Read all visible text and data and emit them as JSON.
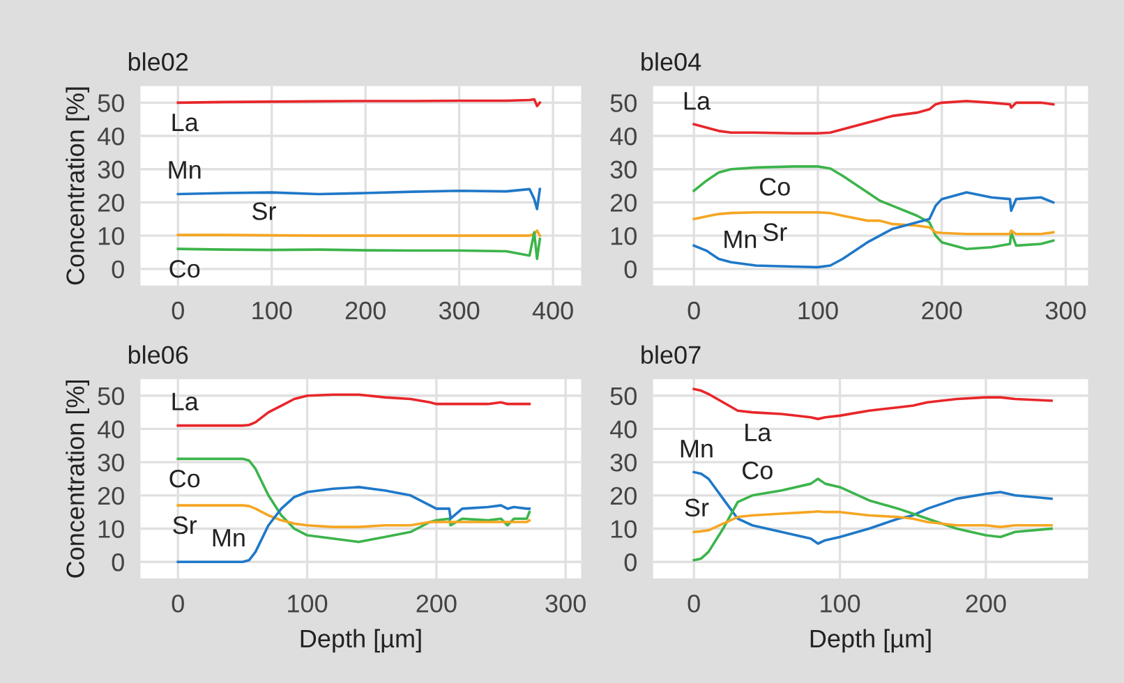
{
  "chart_data": [
    {
      "type": "line",
      "title": "ble02",
      "ylabel": "Concentration [%]",
      "xlim": [
        -40,
        430
      ],
      "xticks": [
        0,
        100,
        200,
        300,
        400
      ],
      "ylim": [
        -5,
        55
      ],
      "yticks": [
        0,
        10,
        20,
        30,
        40,
        50
      ],
      "grid": true,
      "tick_labels": true,
      "x": [
        0,
        50,
        100,
        150,
        200,
        250,
        300,
        350,
        375,
        380,
        383,
        386
      ],
      "series": [
        {
          "name": "La",
          "color": "#e8262a",
          "values": [
            50,
            50.2,
            50.3,
            50.4,
            50.5,
            50.5,
            50.6,
            50.6,
            50.8,
            51,
            49,
            50
          ]
        },
        {
          "name": "Mn",
          "color": "#1f78c8",
          "values": [
            22.5,
            22.8,
            23,
            22.5,
            22.8,
            23.2,
            23.5,
            23.3,
            24,
            21,
            18,
            24
          ]
        },
        {
          "name": "Sr",
          "color": "#f5a623",
          "values": [
            10.2,
            10.2,
            10.1,
            10,
            10,
            10,
            10,
            10,
            10,
            10.5,
            11.5,
            10
          ]
        },
        {
          "name": "Co",
          "color": "#3cb44b",
          "values": [
            6,
            5.8,
            5.7,
            5.8,
            5.6,
            5.5,
            5.5,
            5.3,
            4,
            11,
            3,
            9
          ]
        }
      ],
      "legend": false
    },
    {
      "type": "line",
      "title": "ble04",
      "xlim": [
        -33,
        318
      ],
      "xticks": [
        0,
        100,
        200,
        300
      ],
      "ylim": [
        -5,
        55
      ],
      "yticks": [
        0,
        10,
        20,
        30,
        40,
        50
      ],
      "grid": true,
      "x": [
        0,
        10,
        20,
        30,
        50,
        80,
        100,
        110,
        120,
        140,
        150,
        160,
        180,
        190,
        195,
        200,
        220,
        240,
        255,
        256,
        260,
        280,
        290
      ],
      "series": [
        {
          "name": "La",
          "color": "#e8262a",
          "values": [
            43.5,
            42.5,
            41.5,
            41,
            41,
            40.8,
            40.8,
            41,
            42,
            44,
            45,
            46,
            47,
            48,
            49.5,
            50,
            50.5,
            50,
            49.5,
            48.5,
            50,
            50,
            49.5
          ]
        },
        {
          "name": "Co",
          "color": "#3cb44b",
          "values": [
            23.5,
            26.5,
            29,
            30,
            30.5,
            30.8,
            30.8,
            30.2,
            28,
            23,
            20.5,
            19,
            16,
            14,
            10,
            8,
            6,
            6.5,
            7.5,
            11,
            7,
            7.5,
            8.5
          ]
        },
        {
          "name": "Sr",
          "color": "#f5a623",
          "values": [
            15,
            15.8,
            16.5,
            16.8,
            17,
            17,
            17,
            16.8,
            16,
            14.5,
            14.5,
            13.5,
            13,
            12.5,
            11,
            10.8,
            10.5,
            10.5,
            10.5,
            11.5,
            10.5,
            10.5,
            11
          ]
        },
        {
          "name": "Mn",
          "color": "#1f78c8",
          "values": [
            7,
            5.5,
            3,
            2,
            1,
            0.7,
            0.5,
            1,
            3,
            8,
            10,
            12,
            14,
            15,
            19,
            21,
            23,
            21.5,
            21,
            17.5,
            21,
            21.5,
            20
          ]
        }
      ],
      "legend": false
    },
    {
      "type": "line",
      "title": "ble06",
      "ylabel": "Concentration [%]",
      "xlabel": "Depth [µm]",
      "xlim": [
        -29,
        312
      ],
      "xticks": [
        0,
        100,
        200,
        300
      ],
      "ylim": [
        -5,
        55
      ],
      "yticks": [
        0,
        10,
        20,
        30,
        40,
        50
      ],
      "grid": true,
      "x": [
        0,
        30,
        50,
        55,
        60,
        70,
        80,
        90,
        100,
        120,
        140,
        160,
        180,
        195,
        200,
        210,
        211,
        220,
        240,
        250,
        255,
        260,
        270,
        272
      ],
      "series": [
        {
          "name": "La",
          "color": "#e8262a",
          "values": [
            41,
            41,
            41,
            41.2,
            42,
            45,
            47,
            49,
            50,
            50.3,
            50.3,
            49.5,
            49,
            48,
            47.5,
            47.5,
            47.5,
            47.5,
            47.5,
            48,
            47.5,
            47.5,
            47.5,
            47.5
          ]
        },
        {
          "name": "Co",
          "color": "#3cb44b",
          "values": [
            31,
            31,
            31,
            30.5,
            28,
            20,
            14,
            10,
            8,
            7,
            6,
            7.5,
            9,
            12,
            12.5,
            13,
            11,
            13,
            12.5,
            13,
            11,
            13,
            13,
            15
          ]
        },
        {
          "name": "Sr",
          "color": "#f5a623",
          "values": [
            17,
            17,
            17,
            16.8,
            16,
            14,
            12.5,
            11.5,
            11,
            10.5,
            10.5,
            11,
            11,
            12,
            12,
            12,
            12,
            12,
            12,
            12,
            12,
            12,
            12,
            12.5
          ]
        },
        {
          "name": "Mn",
          "color": "#1f78c8",
          "values": [
            0,
            0,
            0,
            0.5,
            3,
            11,
            16,
            19.5,
            21,
            22,
            22.5,
            21.5,
            20,
            17,
            16,
            16,
            13,
            16,
            16.5,
            17,
            16,
            16.5,
            16,
            16
          ]
        }
      ],
      "legend": false
    },
    {
      "type": "line",
      "title": "ble07",
      "xlabel": "Depth [µm]",
      "xlim": [
        -28,
        270
      ],
      "xticks": [
        0,
        100,
        200
      ],
      "ylim": [
        -5,
        55
      ],
      "yticks": [
        0,
        10,
        20,
        30,
        40,
        50
      ],
      "grid": true,
      "x": [
        0,
        5,
        10,
        20,
        30,
        40,
        60,
        80,
        85,
        90,
        100,
        120,
        140,
        150,
        160,
        180,
        200,
        210,
        220,
        245
      ],
      "series": [
        {
          "name": "La",
          "color": "#e8262a",
          "values": [
            52,
            51.5,
            50.5,
            48,
            45.5,
            45,
            44.5,
            43.5,
            43,
            43.5,
            44,
            45.5,
            46.5,
            47,
            48,
            49,
            49.5,
            49.5,
            49,
            48.5
          ]
        },
        {
          "name": "Mn",
          "color": "#1f78c8",
          "values": [
            27,
            26.5,
            25,
            19,
            13,
            11,
            9,
            7,
            5.5,
            6.5,
            7.5,
            10,
            13,
            14,
            16,
            19,
            20.5,
            21,
            20,
            19
          ]
        },
        {
          "name": "Co",
          "color": "#3cb44b",
          "values": [
            0.5,
            1,
            3,
            10,
            18,
            20,
            21.5,
            23.5,
            25,
            23.5,
            22.5,
            18.5,
            16,
            14.5,
            13,
            10,
            8,
            7.5,
            9,
            10
          ]
        },
        {
          "name": "Sr",
          "color": "#f5a623",
          "values": [
            9,
            9.2,
            9.5,
            11.5,
            13.5,
            14,
            14.5,
            15,
            15.2,
            15,
            15,
            14,
            13.5,
            13,
            12,
            11,
            11,
            10.5,
            11,
            11
          ]
        }
      ],
      "legend": false
    }
  ]
}
